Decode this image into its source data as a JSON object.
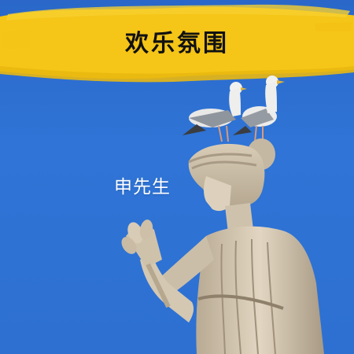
{
  "cover": {
    "title": "欢乐氛围",
    "artist": "申先生"
  },
  "colors": {
    "sky": "#2d70d2",
    "brush": "#f5c518",
    "title_text": "#111111",
    "artist_text": "#ffffff",
    "statue": "#d9cdb9"
  },
  "icons": [
    "seagull-icon",
    "statue-icon",
    "wheat-bouquet-icon"
  ]
}
